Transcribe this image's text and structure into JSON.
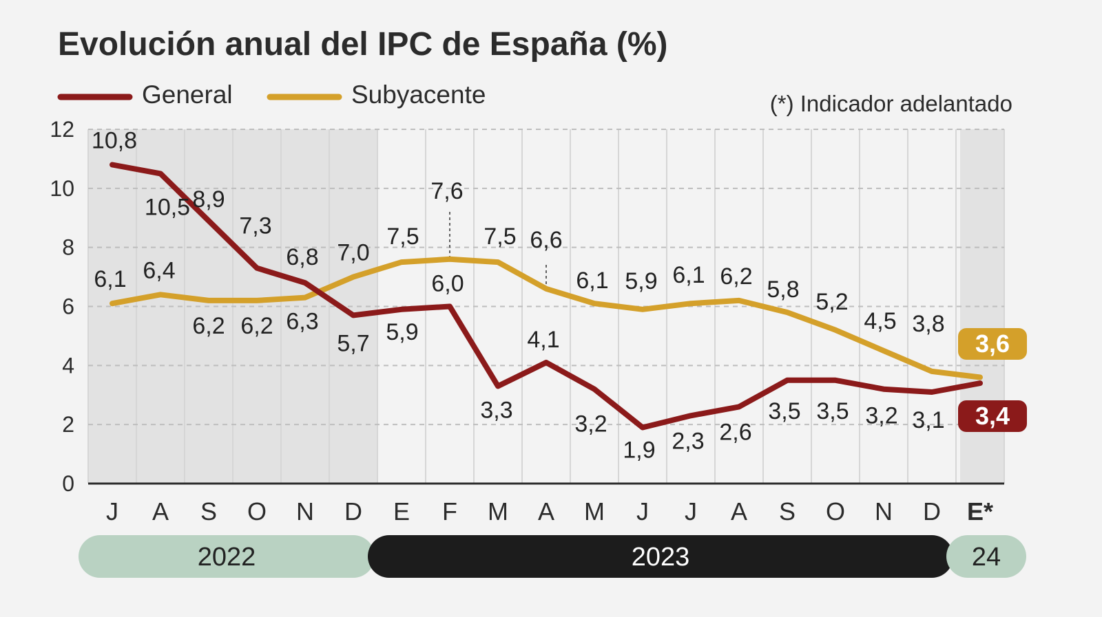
{
  "header": {
    "title": "Evolución anual del IPC de España (%)",
    "note": "(*) Indicador adelantado"
  },
  "chart_data": {
    "type": "line",
    "title": "Evolución anual del IPC de España (%)",
    "categories": [
      "J",
      "A",
      "S",
      "O",
      "N",
      "D",
      "E",
      "F",
      "M",
      "A",
      "M",
      "J",
      "J",
      "A",
      "S",
      "O",
      "N",
      "D",
      "E*"
    ],
    "years": [
      {
        "label": "2022",
        "from": 0,
        "to": 5,
        "color": "#b9d2c2",
        "text_color": "#222222"
      },
      {
        "label": "2023",
        "from": 6,
        "to": 17,
        "color": "#1c1c1c",
        "text_color": "#ffffff"
      },
      {
        "label": "24",
        "from": 18,
        "to": 18,
        "color": "#b9d2c2",
        "text_color": "#222222"
      }
    ],
    "series": [
      {
        "name": "General",
        "color": "#8b1a1a",
        "values": [
          10.8,
          10.5,
          8.9,
          7.3,
          6.8,
          5.7,
          5.9,
          6.0,
          3.3,
          4.1,
          3.2,
          1.9,
          2.3,
          2.6,
          3.5,
          3.5,
          3.2,
          3.1,
          3.4
        ],
        "labels": [
          "10,8",
          "10,5",
          "8,9",
          "7,3",
          "6,8",
          "5,7",
          "5,9",
          "6,0",
          "3,3",
          "4,1",
          "3,2",
          "1,9",
          "2,3",
          "2,6",
          "3,5",
          "3,5",
          "3,2",
          "3,1",
          "3,4"
        ]
      },
      {
        "name": "Subyacente",
        "color": "#d4a02a",
        "values": [
          6.1,
          6.4,
          6.2,
          6.2,
          6.3,
          7.0,
          7.5,
          7.6,
          7.5,
          6.6,
          6.1,
          5.9,
          6.1,
          6.2,
          5.8,
          5.2,
          4.5,
          3.8,
          3.6
        ],
        "labels": [
          "6,1",
          "6,4",
          "6,2",
          "6,2",
          "6,3",
          "7,0",
          "7,5",
          "7,6",
          "7,5",
          "6,6",
          "6,1",
          "5,9",
          "6,1",
          "6,2",
          "5,8",
          "5,2",
          "4,5",
          "3,8",
          "3,6"
        ]
      }
    ],
    "yticks": [
      0,
      2,
      4,
      6,
      8,
      10,
      12
    ],
    "ylim": [
      0,
      12
    ],
    "grid": true,
    "legend": "top-left",
    "shaded_background": {
      "from": 0,
      "to": 5,
      "extra": [
        18
      ],
      "color": "#e2e2e2"
    }
  }
}
